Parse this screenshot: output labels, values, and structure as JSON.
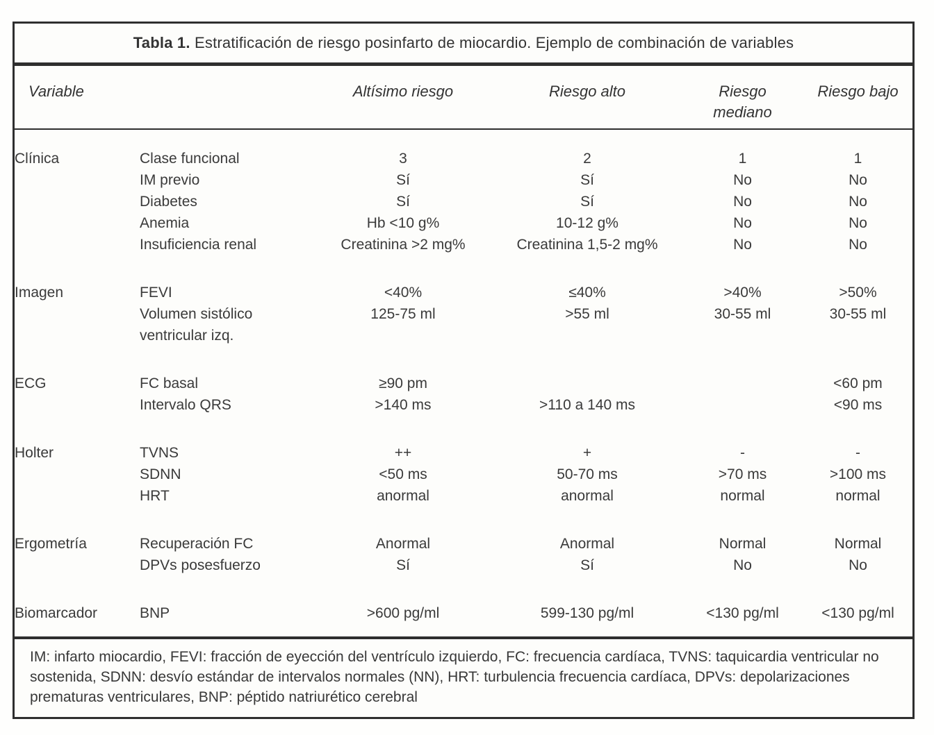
{
  "colors": {
    "border": "#2e2e2e",
    "text": "#3a3a3a",
    "paper": "#fdfdfb"
  },
  "table": {
    "title_bold": "Tabla 1.",
    "title_rest": " Estratificación de riesgo posinfarto de miocardio. Ejemplo de combinación de variables",
    "columns": [
      "Variable",
      "",
      "Altísimo riesgo",
      "Riesgo alto",
      "Riesgo\nmediano",
      "Riesgo bajo"
    ],
    "sections": [
      {
        "category": "Clínica",
        "rows": [
          {
            "label": "Clase funcional",
            "values": [
              "3",
              "2",
              "1",
              "1"
            ]
          },
          {
            "label": "IM previo",
            "values": [
              "Sí",
              "Sí",
              "No",
              "No"
            ]
          },
          {
            "label": "Diabetes",
            "values": [
              "Sí",
              "Sí",
              "No",
              "No"
            ]
          },
          {
            "label": "Anemia",
            "values": [
              "Hb <10 g%",
              "10-12 g%",
              "No",
              "No"
            ]
          },
          {
            "label": "Insuficiencia renal",
            "values": [
              "Creatinina >2 mg%",
              "Creatinina 1,5-2 mg%",
              "No",
              "No"
            ]
          }
        ]
      },
      {
        "category": "Imagen",
        "rows": [
          {
            "label": "FEVI",
            "values": [
              "<40%",
              "≤40%",
              ">40%",
              ">50%"
            ]
          },
          {
            "label": "Volumen sistólico\nventricular izq.",
            "values": [
              "125-75 ml",
              ">55 ml",
              "30-55 ml",
              "30-55 ml"
            ]
          }
        ]
      },
      {
        "category": "ECG",
        "rows": [
          {
            "label": "FC basal",
            "values": [
              "≥90 pm",
              "",
              "",
              "<60 pm"
            ]
          },
          {
            "label": "Intervalo QRS",
            "values": [
              ">140 ms",
              ">110 a 140 ms",
              "",
              "<90 ms"
            ]
          }
        ]
      },
      {
        "category": "Holter",
        "rows": [
          {
            "label": "TVNS",
            "values": [
              "++",
              "+",
              "-",
              "-"
            ]
          },
          {
            "label": "SDNN",
            "values": [
              "<50 ms",
              "50-70 ms",
              ">70 ms",
              ">100 ms"
            ]
          },
          {
            "label": "HRT",
            "values": [
              "anormal",
              "anormal",
              "normal",
              "normal"
            ]
          }
        ]
      },
      {
        "category": "Ergometría",
        "rows": [
          {
            "label": "Recuperación FC",
            "values": [
              "Anormal",
              "Anormal",
              "Normal",
              "Normal"
            ]
          },
          {
            "label": "DPVs posesfuerzo",
            "values": [
              "Sí",
              "Sí",
              "No",
              "No"
            ]
          }
        ]
      },
      {
        "category": "Biomarcador",
        "rows": [
          {
            "label": "BNP",
            "values": [
              ">600 pg/ml",
              "599-130 pg/ml",
              "<130 pg/ml",
              "<130 pg/ml"
            ]
          }
        ]
      }
    ],
    "footnote": "IM: infarto miocardio, FEVI: fracción de eyección del ventrículo izquierdo, FC: frecuencia cardíaca, TVNS: taquicardia ventricular no sostenida, SDNN: desvío estándar de intervalos normales (NN), HRT: turbulencia frecuencia cardíaca, DPVs: depolarizaciones prematuras ventriculares, BNP: péptido natriurético cerebral"
  }
}
